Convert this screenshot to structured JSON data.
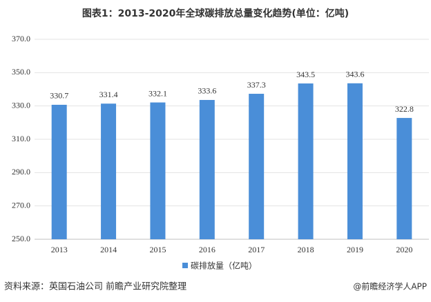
{
  "chart_data": {
    "type": "bar",
    "title": "图表1：2013-2020年全球碳排放总量变化趋势(单位：亿吨)",
    "categories": [
      "2013",
      "2014",
      "2015",
      "2016",
      "2017",
      "2018",
      "2019",
      "2020"
    ],
    "series": [
      {
        "name": "碳排放量（亿吨）",
        "color": "#4a8ed8",
        "values": [
          330.7,
          331.4,
          332.1,
          333.6,
          337.3,
          343.5,
          343.6,
          322.8
        ]
      }
    ],
    "ylim": [
      250,
      370
    ],
    "yticks": [
      {
        "value": 250,
        "label": "250.0"
      },
      {
        "value": 270,
        "label": "270.0"
      },
      {
        "value": 290,
        "label": "290.0"
      },
      {
        "value": 310,
        "label": "310.0"
      },
      {
        "value": 330,
        "label": "330.0"
      },
      {
        "value": 350,
        "label": "350.0"
      },
      {
        "value": 370,
        "label": "370.0"
      }
    ],
    "grid": true,
    "source": "资料来源：英国石油公司 前瞻产业研究院整理",
    "credit": "@前瞻经济学人APP"
  }
}
